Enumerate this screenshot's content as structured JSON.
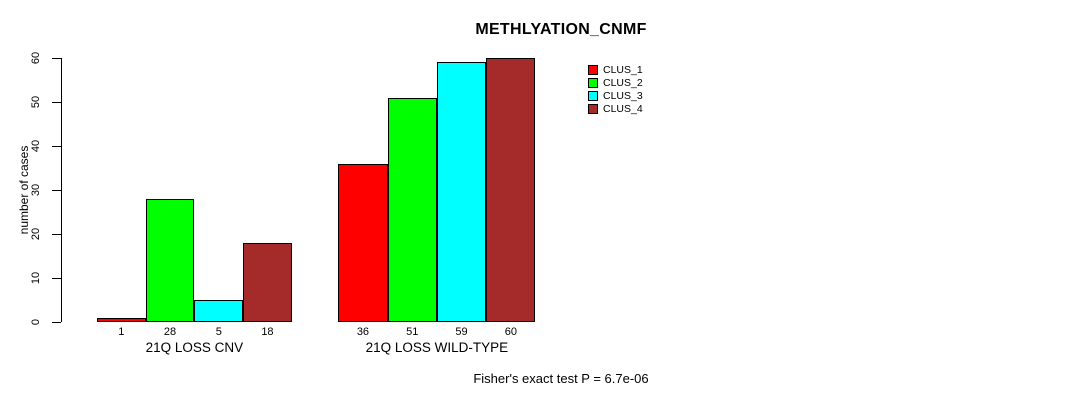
{
  "title": "METHLYATION_CNMF",
  "caption": "Fisher's exact test P = 6.7e-06",
  "chart_data": {
    "type": "bar",
    "title": "METHLYATION_CNMF",
    "ylabel": "number of cases",
    "xlabel": "",
    "ylim": [
      0,
      60
    ],
    "yticks": [
      0,
      10,
      20,
      30,
      40,
      50,
      60
    ],
    "grid": false,
    "legend_position": "top-right-inside",
    "categories": [
      "21Q LOSS CNV",
      "21Q LOSS WILD-TYPE"
    ],
    "series": [
      {
        "name": "CLUS_1",
        "color": "#FF0000",
        "values": [
          1,
          36
        ]
      },
      {
        "name": "CLUS_2",
        "color": "#00FF00",
        "values": [
          28,
          51
        ]
      },
      {
        "name": "CLUS_3",
        "color": "#00FFFF",
        "values": [
          5,
          59
        ]
      },
      {
        "name": "CLUS_4",
        "color": "#A52A2A",
        "values": [
          18,
          60
        ]
      }
    ],
    "bar_value_labels": [
      [
        1,
        28,
        5,
        18
      ],
      [
        36,
        51,
        59,
        60
      ]
    ],
    "annotation": "Fisher's exact test P = 6.7e-06"
  }
}
